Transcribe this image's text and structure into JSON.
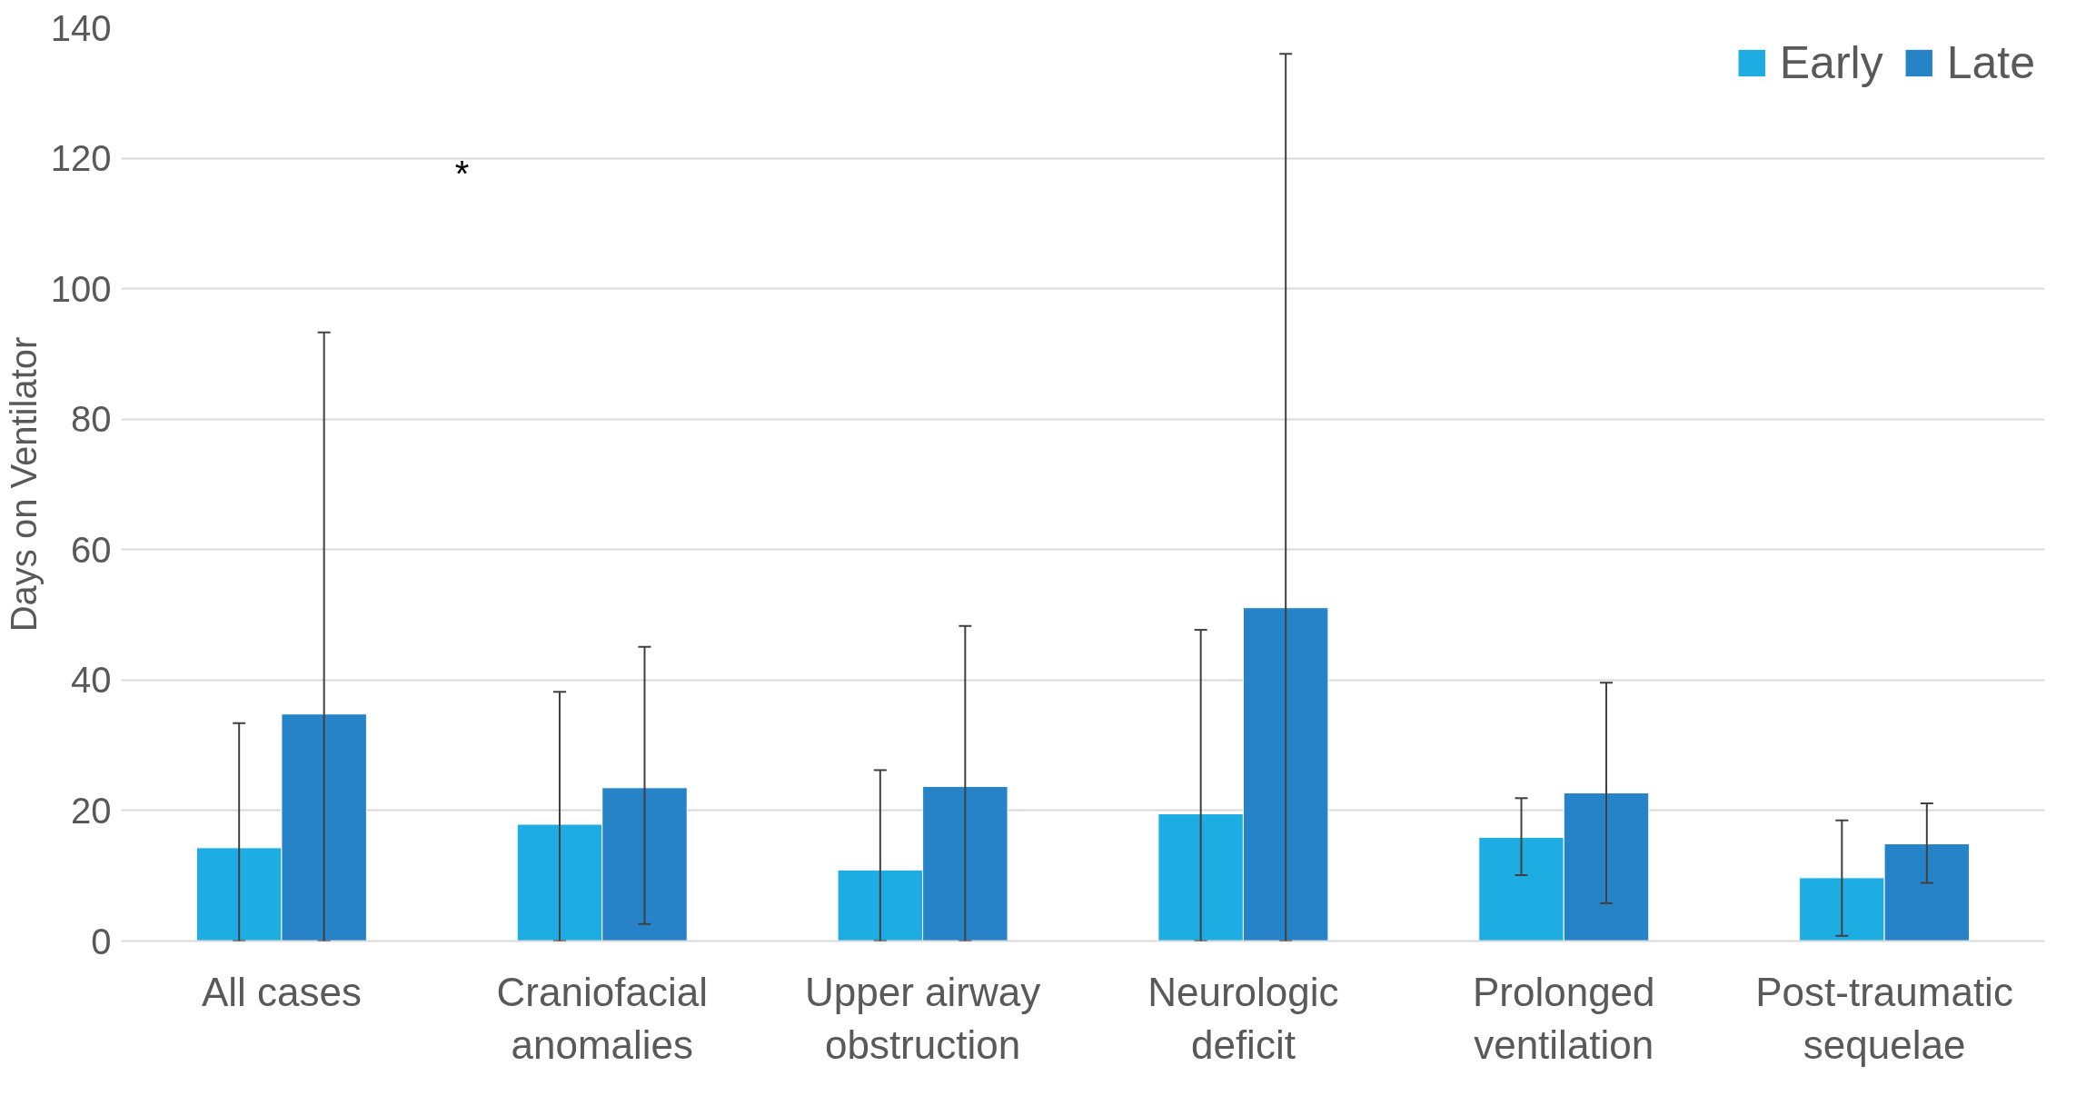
{
  "chart_data": {
    "type": "bar",
    "ylabel": "Days on Ventilator",
    "categories": [
      "All cases",
      "Craniofacial anomalies",
      "Upper airway obstruction",
      "Neurologic deficit",
      "Prolonged ventilation",
      "Post-traumatic sequelae"
    ],
    "series": [
      {
        "name": "Early",
        "color": "#1eade3",
        "values": [
          14.3,
          17.9,
          10.9,
          19.5,
          15.9,
          9.7
        ],
        "errors": [
          [
            0,
            33.4
          ],
          [
            0,
            38.2
          ],
          [
            0,
            26.2
          ],
          [
            0,
            47.7
          ],
          [
            10.1,
            21.9
          ],
          [
            0.8,
            18.5
          ]
        ]
      },
      {
        "name": "Late",
        "color": "#2783c7",
        "values": [
          34.8,
          23.5,
          23.7,
          51.1,
          22.7,
          14.9
        ],
        "errors": [
          [
            0,
            93.3
          ],
          [
            2.6,
            45.1
          ],
          [
            0,
            48.3
          ],
          [
            0,
            136.0
          ],
          [
            5.8,
            39.6
          ],
          [
            8.9,
            21.1
          ]
        ]
      }
    ],
    "ylim": [
      0,
      140
    ],
    "yticks": [
      0,
      20,
      40,
      60,
      80,
      100,
      120,
      140
    ],
    "grid": "y",
    "legend": "top right",
    "annotations": [
      "*"
    ]
  }
}
